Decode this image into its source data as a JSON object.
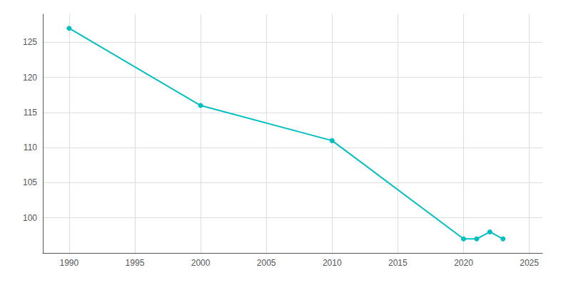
{
  "chart_data": {
    "type": "line",
    "x": [
      1990,
      2000,
      2010,
      2020,
      2021,
      2022,
      2023
    ],
    "values": [
      127,
      116,
      111,
      97,
      97,
      98,
      97
    ],
    "color": "#00BFBF",
    "marker": "circle",
    "xlim": [
      1988,
      2026
    ],
    "ylim": [
      95,
      129
    ],
    "xticks": [
      1990,
      1995,
      2000,
      2005,
      2010,
      2015,
      2020,
      2025
    ],
    "yticks": [
      100,
      105,
      110,
      115,
      120,
      125
    ],
    "grid": true
  }
}
